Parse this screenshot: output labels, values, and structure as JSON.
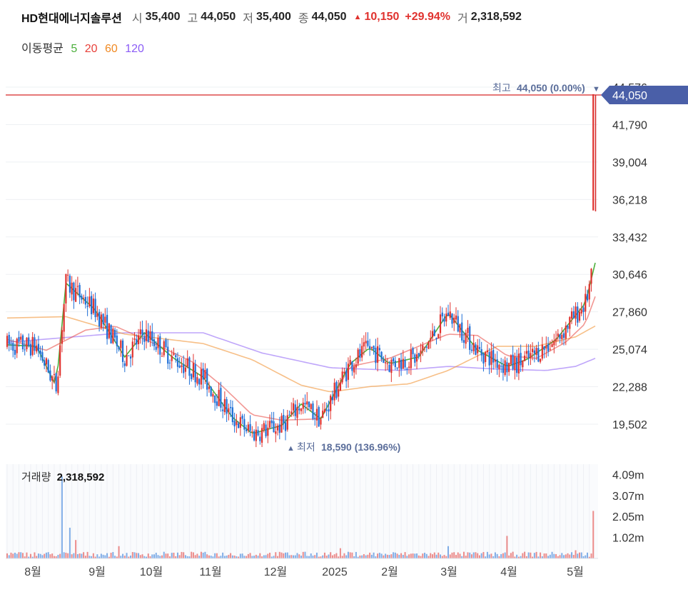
{
  "header": {
    "name": "HD현대에너지솔루션",
    "open_label": "시",
    "open": "35,400",
    "high_label": "고",
    "high": "44,050",
    "low_label": "저",
    "low": "35,400",
    "close_label": "종",
    "close": "44,050",
    "change": "10,150",
    "change_pct": "+29.94%",
    "volume_label": "거",
    "volume": "2,318,592"
  },
  "ma_legend": {
    "title": "이동평균",
    "periods": [
      "5",
      "20",
      "60",
      "120"
    ],
    "colors": [
      "#4caf3c",
      "#e8413a",
      "#f08a24",
      "#8b5cf6"
    ]
  },
  "annotations": {
    "max_label": "최고",
    "max_value": "44,050 (0.00%)",
    "min_label": "최저",
    "min_value": "18,590 (136.96%)",
    "current_price": "44,050"
  },
  "volume_panel": {
    "label": "거래량",
    "value": "2,318,592"
  },
  "colors": {
    "up": "#e0322e",
    "down": "#1f6fd6",
    "price_line": "#d62828",
    "current_tag": "#4a5fa8"
  },
  "chart_data": {
    "type": "candlestick",
    "y_ticks": [
      "44,576",
      "41,790",
      "39,004",
      "36,218",
      "33,432",
      "30,646",
      "27,860",
      "25,074",
      "22,288",
      "19,502"
    ],
    "ylim": [
      18000,
      45000
    ],
    "x_ticks": [
      "8월",
      "9월",
      "10월",
      "11월",
      "12월",
      "2025",
      "2월",
      "3월",
      "4월",
      "5월"
    ],
    "volume_ticks": [
      "4.09m",
      "3.07m",
      "2.05m",
      "1.02m"
    ],
    "volume_ylim": [
      0,
      4600000
    ],
    "ma_approx": {
      "ma120": [
        [
          0,
          25600
        ],
        [
          60,
          26300
        ],
        [
          100,
          26300
        ],
        [
          130,
          24800
        ],
        [
          165,
          23700
        ],
        [
          200,
          23500
        ],
        [
          225,
          23800
        ],
        [
          250,
          23600
        ],
        [
          275,
          23500
        ],
        [
          290,
          23800
        ],
        [
          300,
          24400
        ]
      ],
      "ma60": [
        [
          0,
          27400
        ],
        [
          30,
          27500
        ],
        [
          60,
          26200
        ],
        [
          100,
          25500
        ],
        [
          125,
          24300
        ],
        [
          150,
          22400
        ],
        [
          165,
          21900
        ],
        [
          185,
          22300
        ],
        [
          205,
          22500
        ],
        [
          225,
          23500
        ],
        [
          250,
          25300
        ],
        [
          270,
          25300
        ],
        [
          290,
          26000
        ],
        [
          300,
          26800
        ]
      ],
      "ma20": [
        [
          0,
          25800
        ],
        [
          20,
          25000
        ],
        [
          40,
          26500
        ],
        [
          55,
          26800
        ],
        [
          75,
          25500
        ],
        [
          95,
          24100
        ],
        [
          110,
          22300
        ],
        [
          125,
          20200
        ],
        [
          140,
          19800
        ],
        [
          160,
          19900
        ],
        [
          175,
          23800
        ],
        [
          195,
          24400
        ],
        [
          210,
          25300
        ],
        [
          225,
          26200
        ],
        [
          240,
          26100
        ],
        [
          255,
          24600
        ],
        [
          270,
          24400
        ],
        [
          285,
          25600
        ],
        [
          295,
          27000
        ],
        [
          300,
          29000
        ]
      ],
      "ma5": [
        [
          0,
          25400
        ],
        [
          15,
          25300
        ],
        [
          25,
          22300
        ],
        [
          30,
          30000
        ],
        [
          45,
          28000
        ],
        [
          60,
          24500
        ],
        [
          70,
          26300
        ],
        [
          85,
          24400
        ],
        [
          100,
          23000
        ],
        [
          115,
          20000
        ],
        [
          125,
          18800
        ],
        [
          140,
          19400
        ],
        [
          150,
          21000
        ],
        [
          160,
          19900
        ],
        [
          175,
          24000
        ],
        [
          185,
          25200
        ],
        [
          195,
          24000
        ],
        [
          210,
          24500
        ],
        [
          225,
          27800
        ],
        [
          240,
          25000
        ],
        [
          255,
          23800
        ],
        [
          265,
          24300
        ],
        [
          280,
          25800
        ],
        [
          295,
          28500
        ],
        [
          300,
          31500
        ]
      ]
    }
  }
}
